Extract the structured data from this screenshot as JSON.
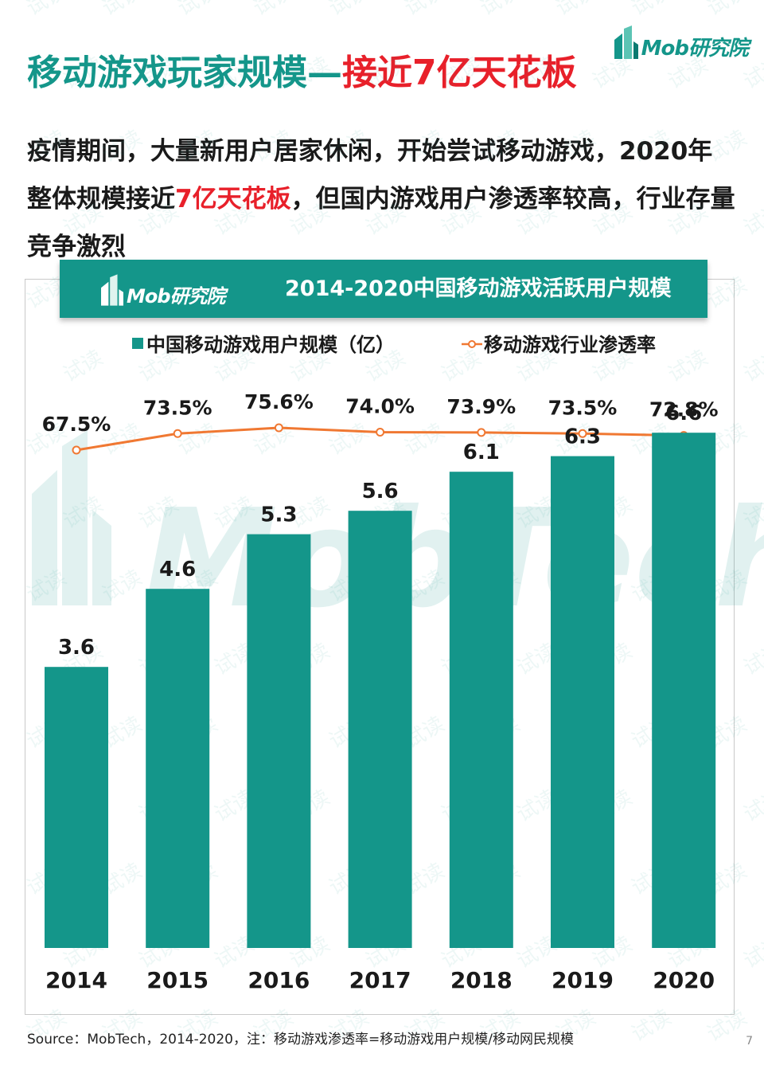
{
  "header": {
    "logo_text": "Mob研究院",
    "title_main": "移动游戏玩家规模—",
    "title_highlight": "接近7亿天花板"
  },
  "subtitle": {
    "part1": "疫情期间，大量新用户居家休闲，开始尝试移动游戏，2020年整体规模接近",
    "highlight": "7亿天花板",
    "part2": "，但国内游戏用户渗透率较高，行业存量竞争激烈"
  },
  "chart_banner": {
    "logo_text": "Mob研究院",
    "title": "2014-2020中国移动游戏活跃用户规模"
  },
  "watermark": {
    "logo": "MobTech",
    "stamp": "试读"
  },
  "chart_data": {
    "type": "bar",
    "title": "2014-2020中国移动游戏活跃用户规模",
    "categories": [
      "2014",
      "2015",
      "2016",
      "2017",
      "2018",
      "2019",
      "2020"
    ],
    "series": [
      {
        "name": "中国移动游戏用户规模（亿）",
        "type": "bar",
        "values": [
          3.6,
          4.6,
          5.3,
          5.6,
          6.1,
          6.3,
          6.6
        ],
        "labels": [
          "3.6",
          "4.6",
          "5.3",
          "5.6",
          "6.1",
          "6.3",
          "6.6"
        ],
        "color": "#14968a"
      },
      {
        "name": "移动游戏行业渗透率",
        "type": "line",
        "values": [
          67.5,
          73.5,
          75.6,
          74.0,
          73.9,
          73.5,
          72.8
        ],
        "labels": [
          "67.5%",
          "73.5%",
          "75.6%",
          "74.0%",
          "73.9%",
          "73.5%",
          "72.8%"
        ],
        "color": "#f07832"
      }
    ],
    "legend_position": "top-left",
    "grid": false
  },
  "footer": {
    "source": "Source：MobTech，2014-2020，注：移动游戏渗透率=移动游戏用户规模/移动网民规模",
    "page_number": "7"
  }
}
